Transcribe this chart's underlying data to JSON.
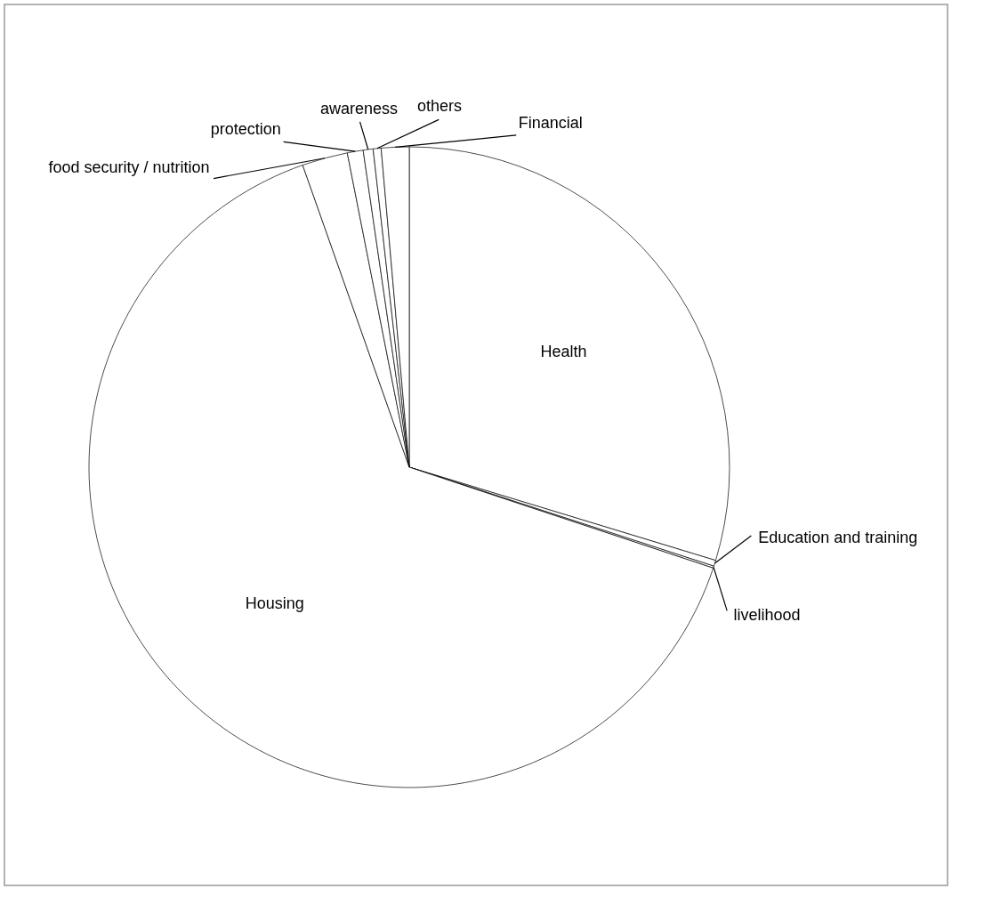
{
  "chart_data": {
    "type": "pie",
    "categories": [
      "Health",
      "Education and training",
      "livelihood",
      "Housing",
      "food  security / nutrition",
      "protection",
      "awareness",
      "others",
      "Financial"
    ],
    "values": [
      29.7,
      0.3,
      0.1,
      64.5,
      2.3,
      0.8,
      0.5,
      0.4,
      1.4
    ],
    "colors": [
      "#ffffff",
      "#ffffff",
      "#ffffff",
      "#ffffff",
      "#ffffff",
      "#ffffff",
      "#ffffff",
      "#ffffff",
      "#ffffff"
    ]
  }
}
